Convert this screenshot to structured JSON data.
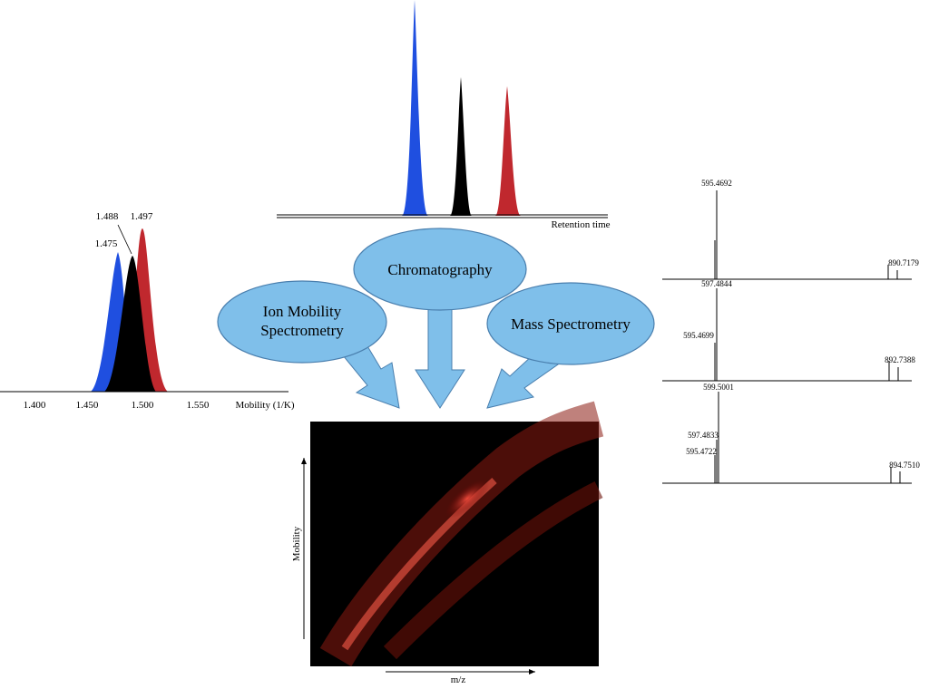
{
  "chromatogram": {
    "x_label": "Retention time"
  },
  "mobilogram": {
    "peak_labels": [
      "1.475",
      "1.488",
      "1.497"
    ],
    "tick_labels": [
      "1.400",
      "1.450",
      "1.500",
      "1.550"
    ],
    "x_label": "Mobility (1/K)"
  },
  "nodes": [
    {
      "lines": [
        "Ion Mobility",
        "Spectrometry"
      ]
    },
    {
      "lines": [
        "Chromatography"
      ]
    },
    {
      "lines": [
        "Mass Spectrometry"
      ]
    }
  ],
  "heatmap": {
    "x_label": "m/z",
    "y_label": "Mobility"
  },
  "spectra": [
    {
      "labels": [
        "595.4692",
        "890.7179"
      ]
    },
    {
      "labels": [
        "597.4844",
        "595.4699",
        "892.7388"
      ]
    },
    {
      "labels": [
        "599.5001",
        "597.4833",
        "595.4722",
        "894.7510"
      ]
    }
  ]
}
